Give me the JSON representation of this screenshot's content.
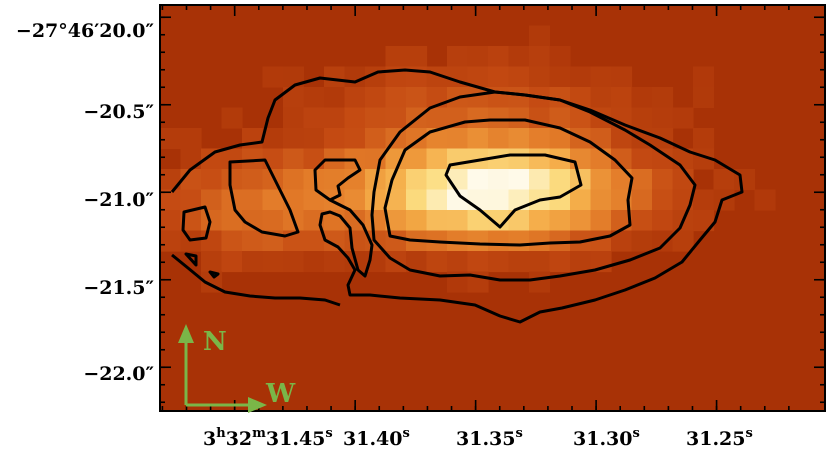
{
  "chart_data": {
    "type": "heatmap",
    "title": "",
    "xlabel": "",
    "ylabel": "",
    "colormap": "red-temperature (dark red → orange → yellow → white)",
    "colors": {
      "background": "#a83206",
      "contour": "#000000",
      "compass": "#7ab648"
    },
    "x_ticks": [
      {
        "value": 31.45,
        "label_main": "3",
        "sup1": "h",
        "mid": "32",
        "sup2": "m",
        "label_end": "31.45",
        "sup3": "s"
      },
      {
        "value": 31.4,
        "label_main": "31.40",
        "sup1": "s"
      },
      {
        "value": 31.35,
        "label_main": "31.35",
        "sup1": "s"
      },
      {
        "value": 31.3,
        "label_main": "31.30",
        "sup1": "s"
      },
      {
        "value": 31.25,
        "label_main": "31.25",
        "sup1": "s"
      }
    ],
    "y_ticks": [
      {
        "value": -20.0,
        "label": "−27°46′20.0″"
      },
      {
        "value": -20.5,
        "label": "−20.5″"
      },
      {
        "value": -21.0,
        "label": "−21.0″"
      },
      {
        "value": -21.5,
        "label": "−21.5″"
      },
      {
        "value": -22.0,
        "label": "−22.0″"
      }
    ],
    "xlim_seconds_RA": [
      31.481,
      31.205
    ],
    "ylim_arcsec_dec": [
      -22.25,
      -19.93
    ],
    "contour_levels": 4,
    "source_peak": {
      "ra_s": 31.345,
      "dec_arcsec": -20.95
    }
  },
  "compass": {
    "north_label": "N",
    "west_label": "W"
  }
}
